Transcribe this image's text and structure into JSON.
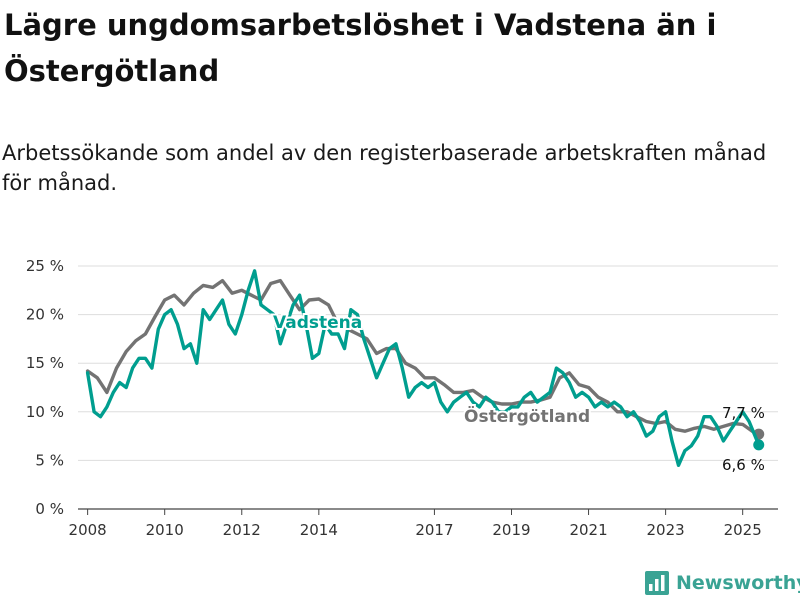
{
  "title": "Lägre ungdomsarbetslöshet i Vadstena än i Östergötland",
  "subtitle": "Arbetssökande som andel av den registerbaserade arbetskraften månad för månad.",
  "brand": {
    "name": "Newsworthy",
    "icon": "bar-chart-logo-icon"
  },
  "colors": {
    "Vadstena": "#009e8f",
    "Östergötland": "#737373",
    "grid": "#dddddd",
    "brand": "#3aa394"
  },
  "chart_data": {
    "type": "line",
    "title": "Lägre ungdomsarbetslöshet i Vadstena än i Östergötland",
    "subtitle": "Arbetssökande som andel av den registerbaserade arbetskraften månad för månad.",
    "xlabel": "",
    "ylabel": "",
    "xlim": [
      "2007-10",
      "2025-12"
    ],
    "ylim": [
      0,
      25
    ],
    "grid": true,
    "y_ticks": [
      {
        "value": 0,
        "label": "0 %"
      },
      {
        "value": 5,
        "label": "5 %"
      },
      {
        "value": 10,
        "label": "10 %"
      },
      {
        "value": 15,
        "label": "15 %"
      },
      {
        "value": 20,
        "label": "20 %"
      },
      {
        "value": 25,
        "label": "25 %"
      }
    ],
    "x_ticks": [
      {
        "value": "2008-01",
        "label": "2008"
      },
      {
        "value": "2010-01",
        "label": "2010"
      },
      {
        "value": "2012-01",
        "label": "2012"
      },
      {
        "value": "2014-01",
        "label": "2014"
      },
      {
        "value": "2017-01",
        "label": "2017"
      },
      {
        "value": "2019-01",
        "label": "2019"
      },
      {
        "value": "2021-01",
        "label": "2021"
      },
      {
        "value": "2023-01",
        "label": "2023"
      },
      {
        "value": "2025-01",
        "label": "2025"
      }
    ],
    "series": [
      {
        "name": "Östergötland",
        "end_label": "7,7 %",
        "points": [
          [
            "2008-01",
            14.2
          ],
          [
            "2008-04",
            13.5
          ],
          [
            "2008-07",
            12.0
          ],
          [
            "2008-10",
            14.5
          ],
          [
            "2009-01",
            16.2
          ],
          [
            "2009-04",
            17.3
          ],
          [
            "2009-07",
            18.0
          ],
          [
            "2009-10",
            19.8
          ],
          [
            "2010-01",
            21.5
          ],
          [
            "2010-04",
            22.0
          ],
          [
            "2010-07",
            21.0
          ],
          [
            "2010-10",
            22.2
          ],
          [
            "2011-01",
            23.0
          ],
          [
            "2011-04",
            22.8
          ],
          [
            "2011-07",
            23.5
          ],
          [
            "2011-10",
            22.2
          ],
          [
            "2012-01",
            22.5
          ],
          [
            "2012-04",
            22.0
          ],
          [
            "2012-07",
            21.5
          ],
          [
            "2012-10",
            23.2
          ],
          [
            "2013-01",
            23.5
          ],
          [
            "2013-04",
            22.0
          ],
          [
            "2013-07",
            20.5
          ],
          [
            "2013-10",
            21.5
          ],
          [
            "2014-01",
            21.6
          ],
          [
            "2014-04",
            21.0
          ],
          [
            "2014-07",
            19.0
          ],
          [
            "2014-10",
            18.5
          ],
          [
            "2015-01",
            18.0
          ],
          [
            "2015-04",
            17.5
          ],
          [
            "2015-07",
            16.0
          ],
          [
            "2015-10",
            16.5
          ],
          [
            "2016-01",
            16.5
          ],
          [
            "2016-04",
            15.0
          ],
          [
            "2016-07",
            14.5
          ],
          [
            "2016-10",
            13.5
          ],
          [
            "2017-01",
            13.5
          ],
          [
            "2017-04",
            12.8
          ],
          [
            "2017-07",
            12.0
          ],
          [
            "2017-10",
            12.0
          ],
          [
            "2018-01",
            12.2
          ],
          [
            "2018-04",
            11.5
          ],
          [
            "2018-07",
            11.0
          ],
          [
            "2018-10",
            10.8
          ],
          [
            "2019-01",
            10.8
          ],
          [
            "2019-04",
            11.0
          ],
          [
            "2019-07",
            11.0
          ],
          [
            "2019-10",
            11.2
          ],
          [
            "2020-01",
            11.5
          ],
          [
            "2020-04",
            13.5
          ],
          [
            "2020-07",
            14.0
          ],
          [
            "2020-10",
            12.8
          ],
          [
            "2021-01",
            12.5
          ],
          [
            "2021-04",
            11.5
          ],
          [
            "2021-07",
            11.0
          ],
          [
            "2021-10",
            10.0
          ],
          [
            "2022-01",
            10.0
          ],
          [
            "2022-04",
            9.5
          ],
          [
            "2022-07",
            9.0
          ],
          [
            "2022-10",
            8.8
          ],
          [
            "2023-01",
            9.0
          ],
          [
            "2023-04",
            8.2
          ],
          [
            "2023-07",
            8.0
          ],
          [
            "2023-10",
            8.3
          ],
          [
            "2024-01",
            8.5
          ],
          [
            "2024-04",
            8.2
          ],
          [
            "2024-07",
            8.5
          ],
          [
            "2024-10",
            8.8
          ],
          [
            "2025-01",
            8.7
          ],
          [
            "2025-04",
            8.0
          ],
          [
            "2025-06",
            7.7
          ]
        ]
      },
      {
        "name": "Vadstena",
        "end_label": "6,6 %",
        "points": [
          [
            "2008-01",
            14.0
          ],
          [
            "2008-03",
            10.0
          ],
          [
            "2008-05",
            9.5
          ],
          [
            "2008-07",
            10.5
          ],
          [
            "2008-09",
            12.0
          ],
          [
            "2008-11",
            13.0
          ],
          [
            "2009-01",
            12.5
          ],
          [
            "2009-03",
            14.5
          ],
          [
            "2009-05",
            15.5
          ],
          [
            "2009-07",
            15.5
          ],
          [
            "2009-09",
            14.5
          ],
          [
            "2009-11",
            18.5
          ],
          [
            "2010-01",
            20.0
          ],
          [
            "2010-03",
            20.5
          ],
          [
            "2010-05",
            19.0
          ],
          [
            "2010-07",
            16.5
          ],
          [
            "2010-09",
            17.0
          ],
          [
            "2010-11",
            15.0
          ],
          [
            "2011-01",
            20.5
          ],
          [
            "2011-03",
            19.5
          ],
          [
            "2011-05",
            20.5
          ],
          [
            "2011-07",
            21.5
          ],
          [
            "2011-09",
            19.0
          ],
          [
            "2011-11",
            18.0
          ],
          [
            "2012-01",
            20.0
          ],
          [
            "2012-03",
            22.5
          ],
          [
            "2012-05",
            24.5
          ],
          [
            "2012-07",
            21.0
          ],
          [
            "2012-09",
            20.5
          ],
          [
            "2012-11",
            20.0
          ],
          [
            "2013-01",
            17.0
          ],
          [
            "2013-03",
            19.0
          ],
          [
            "2013-05",
            21.0
          ],
          [
            "2013-07",
            22.0
          ],
          [
            "2013-09",
            19.0
          ],
          [
            "2013-11",
            15.5
          ],
          [
            "2014-01",
            16.0
          ],
          [
            "2014-03",
            19.0
          ],
          [
            "2014-05",
            18.0
          ],
          [
            "2014-07",
            18.0
          ],
          [
            "2014-09",
            16.5
          ],
          [
            "2014-11",
            20.5
          ],
          [
            "2015-01",
            20.0
          ],
          [
            "2015-03",
            17.5
          ],
          [
            "2015-05",
            15.5
          ],
          [
            "2015-07",
            13.5
          ],
          [
            "2015-09",
            15.0
          ],
          [
            "2015-11",
            16.5
          ],
          [
            "2016-01",
            17.0
          ],
          [
            "2016-03",
            14.5
          ],
          [
            "2016-05",
            11.5
          ],
          [
            "2016-07",
            12.5
          ],
          [
            "2016-09",
            13.0
          ],
          [
            "2016-11",
            12.5
          ],
          [
            "2017-01",
            13.0
          ],
          [
            "2017-03",
            11.0
          ],
          [
            "2017-05",
            10.0
          ],
          [
            "2017-07",
            11.0
          ],
          [
            "2017-09",
            11.5
          ],
          [
            "2017-11",
            12.0
          ],
          [
            "2018-01",
            11.0
          ],
          [
            "2018-03",
            10.5
          ],
          [
            "2018-05",
            11.5
          ],
          [
            "2018-07",
            11.0
          ],
          [
            "2018-09",
            10.0
          ],
          [
            "2018-11",
            10.0
          ],
          [
            "2019-01",
            10.5
          ],
          [
            "2019-03",
            10.5
          ],
          [
            "2019-05",
            11.5
          ],
          [
            "2019-07",
            12.0
          ],
          [
            "2019-09",
            11.0
          ],
          [
            "2019-11",
            11.5
          ],
          [
            "2020-01",
            12.0
          ],
          [
            "2020-03",
            14.5
          ],
          [
            "2020-05",
            14.0
          ],
          [
            "2020-07",
            13.0
          ],
          [
            "2020-09",
            11.5
          ],
          [
            "2020-11",
            12.0
          ],
          [
            "2021-01",
            11.5
          ],
          [
            "2021-03",
            10.5
          ],
          [
            "2021-05",
            11.0
          ],
          [
            "2021-07",
            10.5
          ],
          [
            "2021-09",
            11.0
          ],
          [
            "2021-11",
            10.5
          ],
          [
            "2022-01",
            9.5
          ],
          [
            "2022-03",
            10.0
          ],
          [
            "2022-05",
            9.0
          ],
          [
            "2022-07",
            7.5
          ],
          [
            "2022-09",
            8.0
          ],
          [
            "2022-11",
            9.5
          ],
          [
            "2023-01",
            10.0
          ],
          [
            "2023-03",
            7.0
          ],
          [
            "2023-05",
            4.5
          ],
          [
            "2023-07",
            6.0
          ],
          [
            "2023-09",
            6.5
          ],
          [
            "2023-11",
            7.5
          ],
          [
            "2024-01",
            9.5
          ],
          [
            "2024-03",
            9.5
          ],
          [
            "2024-05",
            8.5
          ],
          [
            "2024-07",
            7.0
          ],
          [
            "2024-09",
            8.0
          ],
          [
            "2024-11",
            9.0
          ],
          [
            "2025-01",
            10.0
          ],
          [
            "2025-03",
            9.0
          ],
          [
            "2025-06",
            6.6
          ]
        ]
      }
    ]
  }
}
